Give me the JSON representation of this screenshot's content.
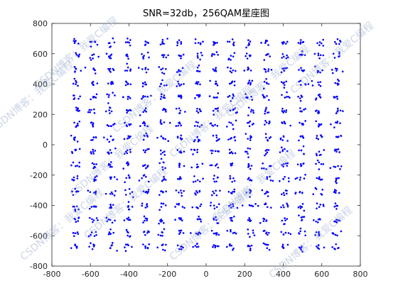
{
  "chart_data": {
    "type": "scatter",
    "title": "SNR=32db，256QAM星座图",
    "xlabel": "",
    "ylabel": "",
    "xlim": [
      -800,
      800
    ],
    "ylim": [
      -800,
      800
    ],
    "xticks": [
      -800,
      -600,
      -400,
      -200,
      0,
      200,
      400,
      600,
      800
    ],
    "yticks": [
      -800,
      -600,
      -400,
      -200,
      0,
      200,
      400,
      600,
      800
    ],
    "grid": false,
    "constellation": {
      "levels": [
        -675,
        -585,
        -495,
        -405,
        -315,
        -225,
        -135,
        -45,
        45,
        135,
        225,
        315,
        405,
        495,
        585,
        675
      ],
      "points_per_symbol": 6,
      "spread": 12
    },
    "marker_color": "#0000ff",
    "watermark_text": "CSDN博客：我爱C编程"
  }
}
